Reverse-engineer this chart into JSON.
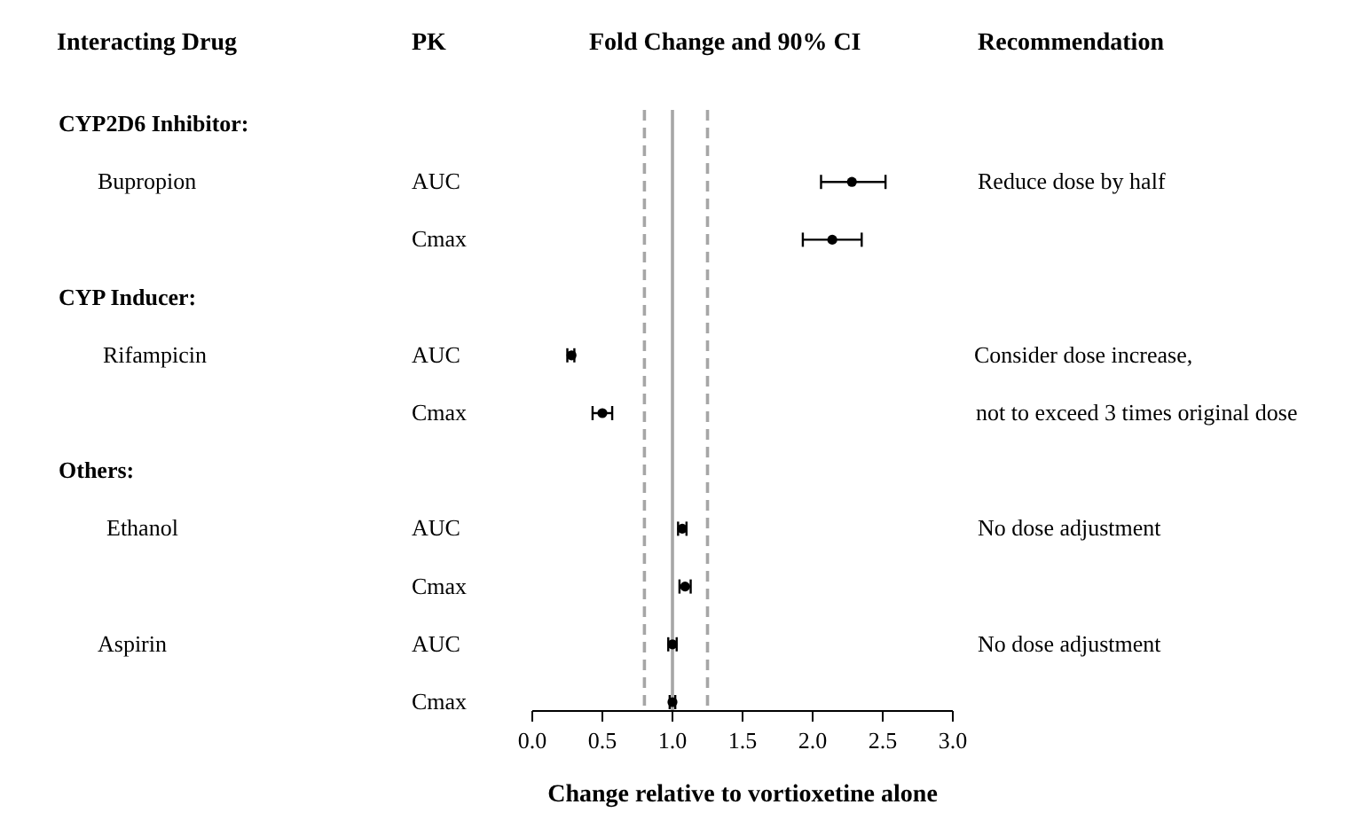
{
  "chart_data": {
    "type": "scatter",
    "orientation": "horizontal",
    "xlabel": "Change relative to vortioxetine alone",
    "categories": [
      "AUC",
      "Cmax",
      "AUC",
      "Cmax",
      "AUC",
      "Cmax",
      "AUC",
      "Cmax"
    ],
    "color": "#000000",
    "values": [
      2.28,
      2.14,
      0.28,
      0.5,
      1.07,
      1.09,
      1.0,
      1.0
    ],
    "errors": [
      [
        2.06,
        2.52
      ],
      [
        1.93,
        2.35
      ],
      [
        0.25,
        0.3
      ],
      [
        0.43,
        0.57
      ],
      [
        1.04,
        1.1
      ],
      [
        1.05,
        1.13
      ],
      [
        0.97,
        1.03
      ],
      [
        0.98,
        1.02
      ]
    ],
    "marker": "circle",
    "xlim": [
      0,
      3
    ],
    "xticks": [
      {
        "value": 0,
        "label": "0.0"
      },
      {
        "value": 0.5,
        "label": "0.5"
      },
      {
        "value": 1,
        "label": "1.0"
      },
      {
        "value": 1.5,
        "label": "1.5"
      },
      {
        "value": 2,
        "label": "2.0"
      },
      {
        "value": 2.5,
        "label": "2.5"
      },
      {
        "value": 3,
        "label": "3.0"
      }
    ],
    "ref_lines": [
      {
        "axis": "x",
        "value": 0.8,
        "color": "#a6a6a6",
        "line_style": "dashed"
      },
      {
        "axis": "x",
        "value": 1,
        "color": "#a6a6a6",
        "line_style": "solid"
      },
      {
        "axis": "x",
        "value": 1.25,
        "color": "#a6a6a6",
        "line_style": "dashed"
      }
    ],
    "annotations": [
      "Interacting Drug",
      "PK",
      "Fold Change and 90% CI",
      "Recommendation",
      "CYP2D6 Inhibitor:",
      "CYP Inducer:",
      "Others:",
      "Bupropion",
      "Rifampicin",
      "Ethanol",
      "Aspirin",
      "Reduce dose by half",
      "Consider dose increase,",
      "not to exceed 3 times original dose",
      "No dose adjustment",
      "No dose adjustment"
    ]
  }
}
